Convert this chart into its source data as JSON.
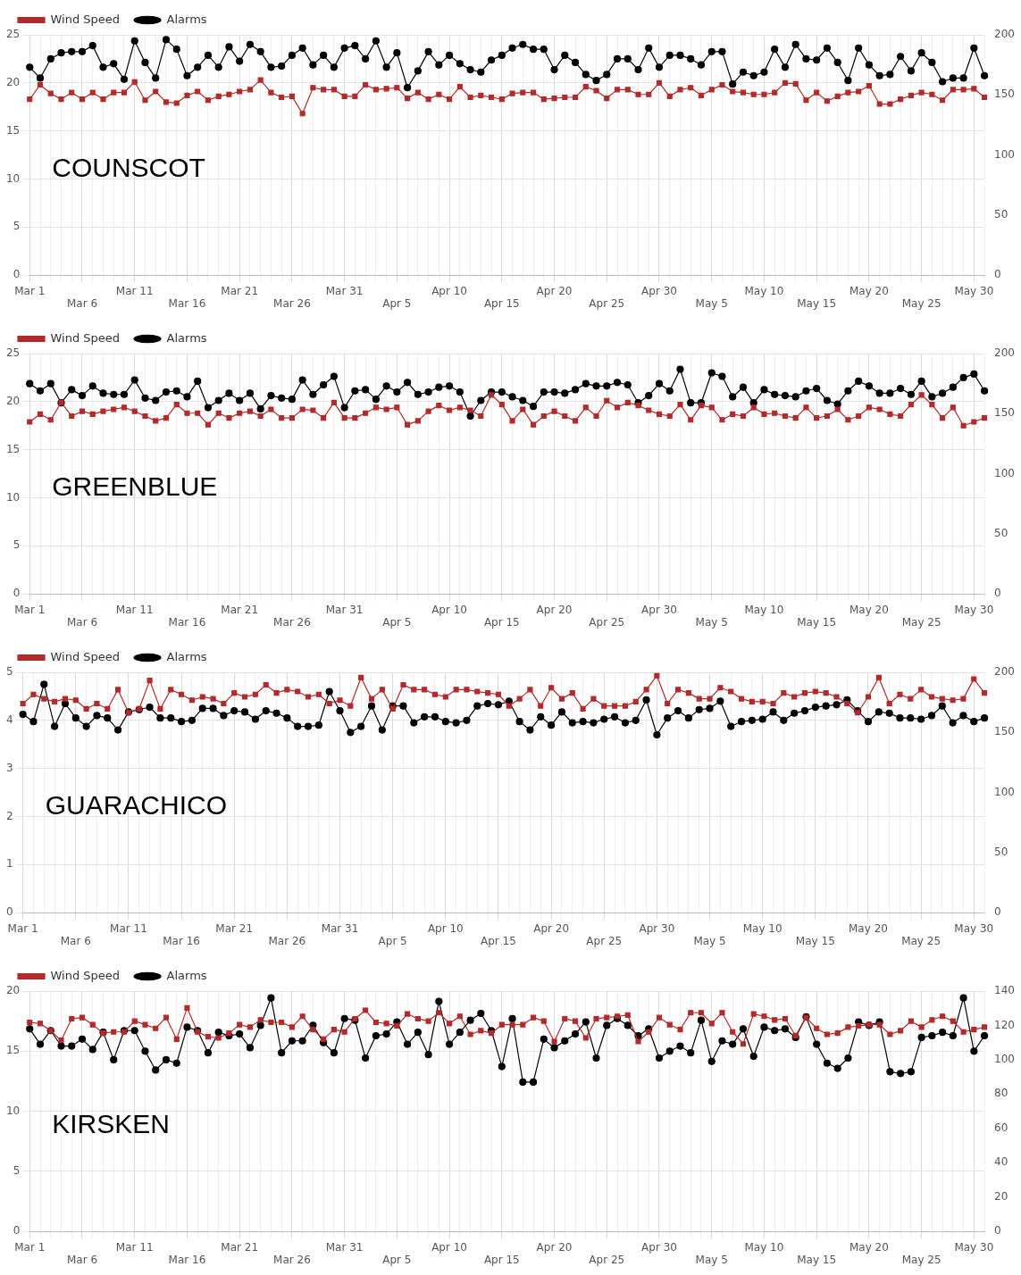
{
  "chart_data": [
    {
      "type": "line",
      "legend": "top left",
      "grid": true,
      "annotations": [
        "COUNSCOT"
      ],
      "categories": [
        "Mar 1",
        null,
        null,
        null,
        null,
        "Mar 6",
        null,
        null,
        null,
        null,
        "Mar 11",
        null,
        null,
        null,
        null,
        "Mar 16",
        null,
        null,
        null,
        null,
        "Mar 21",
        null,
        null,
        null,
        null,
        "Mar 26",
        null,
        null,
        null,
        null,
        "Mar 31",
        null,
        null,
        null,
        null,
        "Apr 5",
        null,
        null,
        null,
        null,
        "Apr 10",
        null,
        null,
        null,
        null,
        "Apr 15",
        null,
        null,
        null,
        null,
        "Apr 20",
        null,
        null,
        null,
        null,
        "Apr 25",
        null,
        null,
        null,
        null,
        "Apr 30",
        null,
        null,
        null,
        null,
        "May 5",
        null,
        null,
        null,
        null,
        "May 10",
        null,
        null,
        null,
        null,
        "May 15",
        null,
        null,
        null,
        null,
        "May 20",
        null,
        null,
        null,
        null,
        "May 25",
        null,
        null,
        null,
        null,
        "May 30",
        null
      ],
      "ylim": [
        0,
        25
      ],
      "yticks": [
        0,
        5,
        10,
        15,
        20,
        25
      ],
      "y2lim": [
        0,
        200
      ],
      "y2ticks": [
        0,
        50,
        100,
        150,
        200
      ],
      "series": [
        {
          "name": "Wind Speed",
          "color": "#b22a2a",
          "marker": "square",
          "values": [
            18.3,
            19.8,
            18.9,
            18.3,
            19.0,
            18.3,
            19.0,
            18.3,
            19.0,
            19.0,
            20.1,
            18.2,
            19.1,
            18.0,
            17.9,
            18.7,
            19.1,
            18.2,
            18.6,
            18.8,
            19.1,
            19.3,
            20.3,
            19.0,
            18.5,
            18.6,
            16.8,
            19.5,
            19.3,
            19.3,
            18.6,
            18.6,
            19.8,
            19.3,
            19.4,
            19.5,
            18.4,
            19.0,
            18.3,
            18.8,
            18.3,
            19.6,
            18.5,
            18.7,
            18.5,
            18.3,
            18.9,
            19.0,
            19.0,
            18.3,
            18.4,
            18.5,
            18.5,
            19.6,
            19.2,
            18.4,
            19.3,
            19.3,
            18.8,
            18.8,
            20.0,
            18.6,
            19.3,
            19.5,
            18.7,
            19.3,
            19.8,
            19.1,
            19.0,
            18.8,
            18.8,
            19.0,
            20.0,
            19.9,
            18.2,
            19.0,
            18.1,
            18.6,
            19.0,
            19.1,
            19.7,
            17.8,
            17.8,
            18.3,
            18.7,
            19.0,
            18.8,
            18.2,
            19.3,
            19.3,
            19.4,
            18.5
          ]
        },
        {
          "name": "Alarms",
          "color": "#000000",
          "marker": "circle",
          "axis": "y2",
          "values": [
            173,
            164,
            180,
            185,
            186,
            186,
            191,
            173,
            176,
            163,
            195,
            177,
            164,
            196,
            188,
            166,
            173,
            183,
            173,
            190,
            178,
            192,
            186,
            173,
            174,
            183,
            189,
            175,
            183,
            173,
            189,
            191,
            180,
            195,
            173,
            185,
            156,
            170,
            186,
            175,
            183,
            176,
            171,
            169,
            179,
            183,
            189,
            192,
            188,
            188,
            171,
            183,
            177,
            167,
            162,
            167,
            180,
            180,
            171,
            189,
            173,
            183,
            183,
            180,
            175,
            186,
            186,
            159,
            169,
            166,
            169,
            188,
            173,
            192,
            180,
            179,
            189,
            177,
            162,
            189,
            175,
            166,
            167,
            182,
            170,
            185,
            177,
            161,
            164,
            164,
            189,
            166
          ]
        }
      ]
    },
    {
      "type": "line",
      "legend": "top left",
      "grid": true,
      "annotations": [
        "GREENBLUE"
      ],
      "categories": [
        "Mar 1",
        null,
        null,
        null,
        null,
        "Mar 6",
        null,
        null,
        null,
        null,
        "Mar 11",
        null,
        null,
        null,
        null,
        "Mar 16",
        null,
        null,
        null,
        null,
        "Mar 21",
        null,
        null,
        null,
        null,
        "Mar 26",
        null,
        null,
        null,
        null,
        "Mar 31",
        null,
        null,
        null,
        null,
        "Apr 5",
        null,
        null,
        null,
        null,
        "Apr 10",
        null,
        null,
        null,
        null,
        "Apr 15",
        null,
        null,
        null,
        null,
        "Apr 20",
        null,
        null,
        null,
        null,
        "Apr 25",
        null,
        null,
        null,
        null,
        "Apr 30",
        null,
        null,
        null,
        null,
        "May 5",
        null,
        null,
        null,
        null,
        "May 10",
        null,
        null,
        null,
        null,
        "May 15",
        null,
        null,
        null,
        null,
        "May 20",
        null,
        null,
        null,
        null,
        "May 25",
        null,
        null,
        null,
        null,
        "May 30",
        null
      ],
      "ylim": [
        0,
        25
      ],
      "yticks": [
        0,
        5,
        10,
        15,
        20,
        25
      ],
      "y2lim": [
        0,
        200
      ],
      "y2ticks": [
        0,
        50,
        100,
        150,
        200
      ],
      "series": [
        {
          "name": "Wind Speed",
          "color": "#b22a2a",
          "marker": "square",
          "values": [
            17.9,
            18.7,
            18.1,
            19.9,
            18.5,
            19.0,
            18.7,
            19.0,
            19.2,
            19.4,
            19.0,
            18.5,
            18.0,
            18.3,
            19.7,
            18.8,
            18.8,
            17.6,
            18.8,
            18.3,
            18.8,
            19.0,
            18.5,
            19.2,
            18.3,
            18.3,
            19.2,
            19.1,
            18.3,
            19.9,
            18.3,
            18.3,
            18.8,
            19.4,
            19.2,
            19.4,
            17.6,
            18.0,
            19.0,
            19.6,
            19.1,
            19.4,
            19.1,
            18.5,
            20.7,
            19.7,
            18.0,
            19.2,
            17.6,
            18.5,
            19.0,
            18.5,
            18.0,
            19.4,
            18.5,
            20.1,
            19.4,
            19.9,
            19.6,
            19.1,
            18.7,
            18.5,
            19.7,
            18.1,
            19.6,
            19.4,
            18.1,
            18.7,
            18.5,
            19.4,
            18.7,
            18.8,
            18.5,
            18.3,
            19.4,
            18.3,
            18.5,
            19.2,
            18.1,
            18.5,
            19.4,
            19.2,
            18.7,
            18.5,
            19.7,
            20.7,
            19.7,
            18.3,
            19.4,
            17.5,
            17.9,
            18.3
          ]
        },
        {
          "name": "Alarms",
          "color": "#000000",
          "marker": "circle",
          "axis": "y2",
          "values": [
            175,
            169,
            175,
            159,
            170,
            165,
            173,
            167,
            166,
            166,
            178,
            163,
            161,
            168,
            169,
            164,
            177,
            155,
            161,
            167,
            161,
            167,
            154,
            165,
            163,
            162,
            178,
            166,
            174,
            181,
            155,
            169,
            170,
            162,
            173,
            168,
            176,
            166,
            168,
            172,
            173,
            168,
            148,
            161,
            168,
            168,
            164,
            161,
            156,
            168,
            168,
            167,
            170,
            175,
            173,
            173,
            176,
            174,
            159,
            165,
            175,
            169,
            187,
            159,
            159,
            184,
            181,
            164,
            172,
            159,
            170,
            166,
            165,
            164,
            169,
            171,
            161,
            158,
            169,
            177,
            173,
            167,
            167,
            171,
            166,
            177,
            164,
            167,
            172,
            180,
            183,
            169
          ]
        }
      ]
    },
    {
      "type": "line",
      "legend": "top left",
      "grid": true,
      "annotations": [
        "GUARACHICO"
      ],
      "categories": [
        "Mar 1",
        null,
        null,
        null,
        null,
        "Mar 6",
        null,
        null,
        null,
        null,
        "Mar 11",
        null,
        null,
        null,
        null,
        "Mar 16",
        null,
        null,
        null,
        null,
        "Mar 21",
        null,
        null,
        null,
        null,
        "Mar 26",
        null,
        null,
        null,
        null,
        "Mar 31",
        null,
        null,
        null,
        null,
        "Apr 5",
        null,
        null,
        null,
        null,
        "Apr 10",
        null,
        null,
        null,
        null,
        "Apr 15",
        null,
        null,
        null,
        null,
        "Apr 20",
        null,
        null,
        null,
        null,
        "Apr 25",
        null,
        null,
        null,
        null,
        "Apr 30",
        null,
        null,
        null,
        null,
        "May 5",
        null,
        null,
        null,
        null,
        "May 10",
        null,
        null,
        null,
        null,
        "May 15",
        null,
        null,
        null,
        null,
        "May 20",
        null,
        null,
        null,
        null,
        "May 25",
        null,
        null,
        null,
        null,
        "May 30",
        null
      ],
      "ylim": [
        0,
        5
      ],
      "yticks": [
        0,
        1,
        2,
        3,
        4,
        5
      ],
      "y2lim": [
        0,
        200
      ],
      "y2ticks": [
        0,
        50,
        100,
        150,
        200
      ],
      "series": [
        {
          "name": "Wind Speed",
          "color": "#b22a2a",
          "marker": "square",
          "values": [
            4.35,
            4.54,
            4.45,
            4.39,
            4.45,
            4.42,
            4.24,
            4.35,
            4.24,
            4.64,
            4.16,
            4.24,
            4.83,
            4.24,
            4.64,
            4.54,
            4.42,
            4.49,
            4.45,
            4.35,
            4.57,
            4.49,
            4.54,
            4.74,
            4.57,
            4.64,
            4.6,
            4.49,
            4.54,
            4.35,
            4.42,
            4.3,
            4.89,
            4.45,
            4.64,
            4.24,
            4.74,
            4.64,
            4.64,
            4.54,
            4.49,
            4.64,
            4.64,
            4.6,
            4.57,
            4.54,
            4.3,
            4.45,
            4.64,
            4.3,
            4.68,
            4.45,
            4.57,
            4.24,
            4.45,
            4.3,
            4.3,
            4.3,
            4.39,
            4.64,
            4.93,
            4.35,
            4.64,
            4.57,
            4.45,
            4.45,
            4.68,
            4.6,
            4.45,
            4.39,
            4.39,
            4.35,
            4.57,
            4.49,
            4.57,
            4.6,
            4.57,
            4.49,
            4.35,
            4.16,
            4.49,
            4.89,
            4.35,
            4.54,
            4.45,
            4.64,
            4.49,
            4.45,
            4.42,
            4.45,
            4.86,
            4.57
          ]
        },
        {
          "name": "Alarms",
          "color": "#000000",
          "marker": "circle",
          "axis": "y2",
          "values": [
            165,
            159,
            190,
            155,
            174,
            162,
            155,
            164,
            162,
            152,
            167,
            169,
            171,
            162,
            162,
            159,
            160,
            170,
            170,
            164,
            168,
            167,
            161,
            168,
            166,
            162,
            155,
            155,
            156,
            184,
            168,
            150,
            155,
            172,
            152,
            172,
            172,
            158,
            163,
            163,
            159,
            158,
            160,
            172,
            174,
            173,
            176,
            159,
            152,
            163,
            156,
            167,
            158,
            159,
            158,
            161,
            163,
            158,
            160,
            177,
            148,
            162,
            168,
            162,
            169,
            170,
            176,
            155,
            159,
            160,
            161,
            167,
            160,
            166,
            168,
            171,
            172,
            173,
            177,
            168,
            159,
            167,
            166,
            162,
            162,
            161,
            164,
            172,
            158,
            164,
            159,
            162
          ]
        }
      ]
    },
    {
      "type": "line",
      "legend": "top left",
      "grid": true,
      "annotations": [
        "KIRSKEN"
      ],
      "categories": [
        "Mar 1",
        null,
        null,
        null,
        null,
        "Mar 6",
        null,
        null,
        null,
        null,
        "Mar 11",
        null,
        null,
        null,
        null,
        "Mar 16",
        null,
        null,
        null,
        null,
        "Mar 21",
        null,
        null,
        null,
        null,
        "Mar 26",
        null,
        null,
        null,
        null,
        "Mar 31",
        null,
        null,
        null,
        null,
        "Apr 5",
        null,
        null,
        null,
        null,
        "Apr 10",
        null,
        null,
        null,
        null,
        "Apr 15",
        null,
        null,
        null,
        null,
        "Apr 20",
        null,
        null,
        null,
        null,
        "Apr 25",
        null,
        null,
        null,
        null,
        "Apr 30",
        null,
        null,
        null,
        null,
        "May 5",
        null,
        null,
        null,
        null,
        "May 10",
        null,
        null,
        null,
        null,
        "May 15",
        null,
        null,
        null,
        null,
        "May 20",
        null,
        null,
        null,
        null,
        "May 25",
        null,
        null,
        null,
        null,
        "May 30",
        null
      ],
      "ylim": [
        0,
        20
      ],
      "yticks": [
        0,
        5,
        10,
        15,
        20
      ],
      "y2lim": [
        0,
        140
      ],
      "y2ticks": [
        0,
        20,
        40,
        60,
        80,
        100,
        120,
        140
      ],
      "series": [
        {
          "name": "Wind Speed",
          "color": "#b22a2a",
          "marker": "square",
          "values": [
            17.4,
            17.3,
            16.7,
            15.9,
            17.7,
            17.8,
            17.2,
            16.5,
            16.6,
            16.6,
            17.5,
            17.2,
            16.9,
            17.8,
            16.0,
            18.6,
            16.6,
            16.2,
            16.1,
            16.5,
            17.2,
            17.0,
            17.6,
            17.4,
            17.4,
            17.0,
            17.9,
            16.8,
            16.0,
            16.8,
            16.6,
            17.7,
            18.4,
            17.4,
            17.3,
            17.1,
            18.1,
            17.7,
            17.5,
            18.2,
            17.3,
            17.9,
            16.4,
            16.7,
            16.5,
            17.2,
            17.2,
            17.2,
            17.8,
            17.5,
            15.8,
            17.7,
            17.5,
            16.1,
            17.7,
            17.8,
            17.9,
            18.0,
            15.8,
            16.6,
            17.8,
            17.2,
            16.8,
            18.2,
            18.2,
            17.3,
            18.2,
            16.6,
            15.6,
            18.1,
            17.9,
            17.6,
            17.7,
            16.3,
            17.8,
            16.9,
            16.4,
            16.5,
            17.0,
            17.1,
            17.2,
            17.2,
            16.4,
            16.7,
            17.5,
            17.0,
            17.6,
            17.9,
            17.5,
            16.6,
            16.8,
            17.0
          ]
        },
        {
          "name": "Alarms",
          "color": "#000000",
          "marker": "circle",
          "axis": "y2",
          "values": [
            118,
            109,
            117,
            108,
            108,
            112,
            106,
            116,
            100,
            117,
            117,
            105,
            94,
            100,
            98,
            119,
            117,
            104,
            116,
            114,
            115,
            107,
            120,
            136,
            104,
            111,
            111,
            120,
            110,
            104,
            124,
            123,
            101,
            114,
            115,
            122,
            109,
            116,
            103,
            134,
            109,
            116,
            123,
            127,
            117,
            96,
            124,
            87,
            87,
            112,
            107,
            111,
            115,
            122,
            101,
            120,
            124,
            120,
            114,
            118,
            101,
            105,
            108,
            104,
            123,
            99,
            111,
            109,
            118,
            102,
            119,
            117,
            118,
            113,
            125,
            109,
            98,
            95,
            101,
            122,
            120,
            122,
            93,
            92,
            93,
            113,
            114,
            116,
            114,
            136,
            105,
            114
          ]
        }
      ]
    }
  ]
}
